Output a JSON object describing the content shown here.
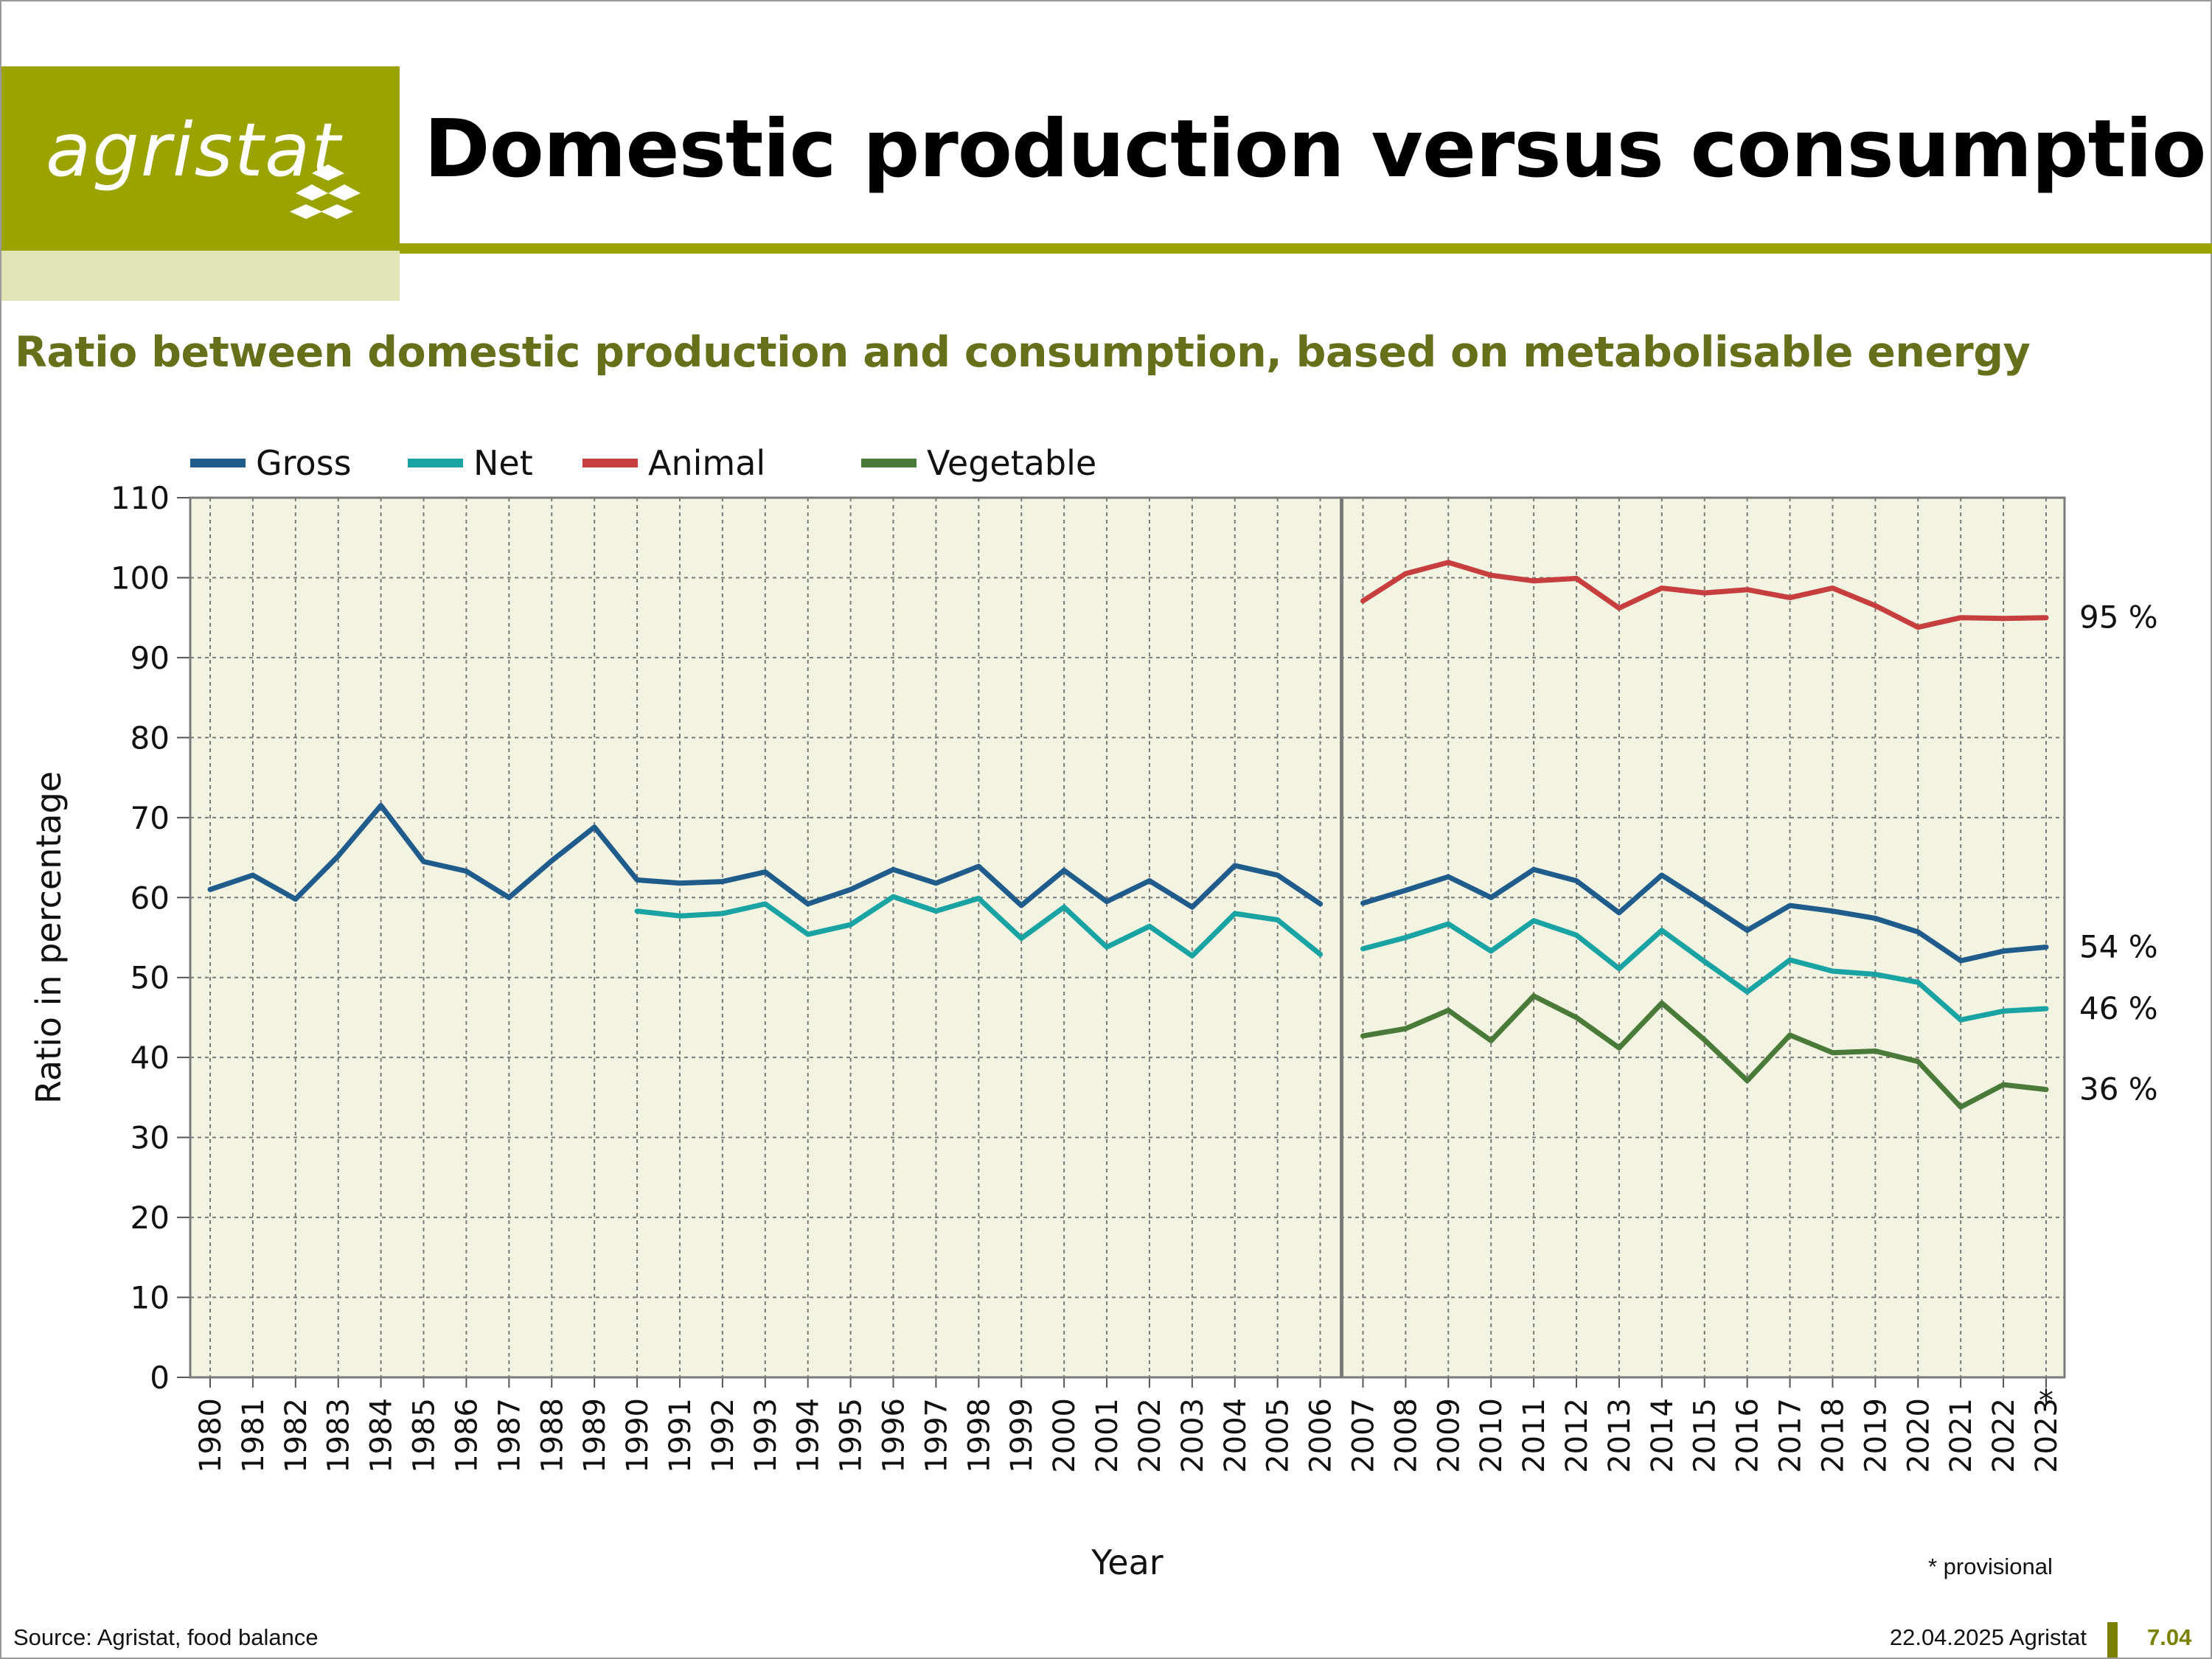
{
  "header": {
    "logo_text": "agristat",
    "title": "Domestic production versus consumption",
    "subtitle": "Ratio between domestic production and consumption, based on metabolisable energy"
  },
  "colors": {
    "brand_olive": "#9aa300",
    "brand_light": "#e1e4b5",
    "subtitle": "#66701a",
    "plot_bg": "#f3f3e1",
    "Gross": "#1f5c8c",
    "Net": "#1aa3a3",
    "Animal": "#c73e3e",
    "Vegetable": "#4a7a3a"
  },
  "footer": {
    "source": "Source: Agristat, food balance",
    "date": "22.04.2025 Agristat",
    "page": "7.04",
    "note": "* provisional"
  },
  "chart_data": {
    "type": "line",
    "xlabel": "Year",
    "ylabel": "Ratio in percentage",
    "ylim": [
      0,
      110
    ],
    "yticks": [
      0,
      10,
      20,
      30,
      40,
      50,
      60,
      70,
      80,
      90,
      100,
      110
    ],
    "grid": true,
    "legend_position": "top-left",
    "break_after": "2006",
    "provisional_marker": "*",
    "provisional_year": "2023",
    "x": [
      "1980",
      "1981",
      "1982",
      "1983",
      "1984",
      "1985",
      "1986",
      "1987",
      "1988",
      "1989",
      "1990",
      "1991",
      "1992",
      "1993",
      "1994",
      "1995",
      "1996",
      "1997",
      "1998",
      "1999",
      "2000",
      "2001",
      "2002",
      "2003",
      "2004",
      "2005",
      "2006",
      "2007",
      "2008",
      "2009",
      "2010",
      "2011",
      "2012",
      "2013",
      "2014",
      "2015",
      "2016",
      "2017",
      "2018",
      "2019",
      "2020",
      "2021",
      "2022",
      "2023"
    ],
    "series": [
      {
        "name": "Gross",
        "values": [
          61,
          62.8,
          59.8,
          65.2,
          71.5,
          64.5,
          63.3,
          60,
          64.6,
          68.8,
          62.2,
          61.8,
          62,
          63.2,
          59.2,
          61,
          63.5,
          61.8,
          63.9,
          59,
          63.4,
          59.5,
          62.1,
          58.8,
          64,
          62.8,
          59.2,
          59.3,
          60.9,
          62.6,
          60,
          63.5,
          62.1,
          58.1,
          62.8,
          59.4,
          55.9,
          59,
          58.3,
          57.4,
          55.7,
          52.1,
          53.3,
          53.8
        ],
        "end_label": "54 %"
      },
      {
        "name": "Net",
        "values": [
          null,
          null,
          null,
          null,
          null,
          null,
          null,
          null,
          null,
          null,
          58.3,
          57.7,
          58,
          59.2,
          55.4,
          56.6,
          60.1,
          58.3,
          59.9,
          54.9,
          58.8,
          53.8,
          56.4,
          52.7,
          58,
          57.2,
          52.9,
          53.6,
          55,
          56.7,
          53.3,
          57.1,
          55.3,
          51.1,
          55.9,
          52,
          48.2,
          52.2,
          50.8,
          50.4,
          49.4,
          44.7,
          45.8,
          46.1
        ],
        "end_label": "46 %"
      },
      {
        "name": "Animal",
        "values": [
          null,
          null,
          null,
          null,
          null,
          null,
          null,
          null,
          null,
          null,
          null,
          null,
          null,
          null,
          null,
          null,
          null,
          null,
          null,
          null,
          null,
          null,
          null,
          null,
          null,
          null,
          null,
          97.1,
          100.5,
          101.9,
          100.3,
          99.6,
          99.9,
          96.2,
          98.7,
          98.1,
          98.5,
          97.5,
          98.7,
          96.5,
          93.8,
          95,
          94.9,
          95
        ],
        "end_label": "95 %"
      },
      {
        "name": "Vegetable",
        "values": [
          null,
          null,
          null,
          null,
          null,
          null,
          null,
          null,
          null,
          null,
          null,
          null,
          null,
          null,
          null,
          null,
          null,
          null,
          null,
          null,
          null,
          null,
          null,
          null,
          null,
          null,
          null,
          42.7,
          43.6,
          45.9,
          42.1,
          47.7,
          45,
          41.2,
          46.8,
          42.2,
          37.1,
          42.8,
          40.6,
          40.8,
          39.5,
          33.8,
          36.6,
          36
        ],
        "end_label": "36 %"
      }
    ]
  }
}
